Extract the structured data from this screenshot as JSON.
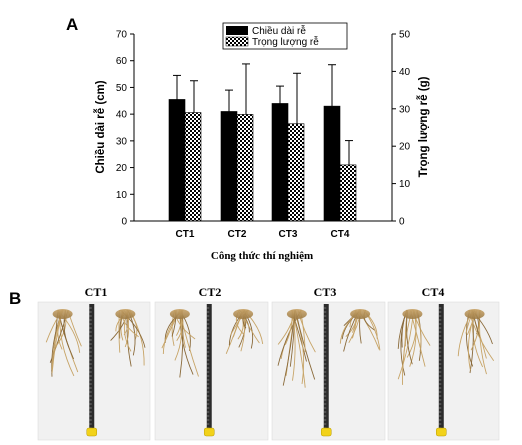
{
  "chart_data": {
    "type": "bar",
    "panel_label": "A",
    "categories": [
      "CT1",
      "CT2",
      "CT3",
      "CT4"
    ],
    "xlabel": "Công thức thí nghiệm",
    "ylabel_left": "Chiều dài rễ (cm)",
    "ylabel_right": "Trọng lượng rễ (g)",
    "ylim_left": [
      0,
      70
    ],
    "yticks_left": [
      0,
      10,
      20,
      30,
      40,
      50,
      60,
      70
    ],
    "ylim_right": [
      0,
      50
    ],
    "yticks_right": [
      0,
      10,
      20,
      30,
      40,
      50
    ],
    "legend_position": "top-center",
    "grid": false,
    "series": [
      {
        "name": "Chiều dài rễ",
        "axis": "left",
        "fill": "solid",
        "color": "#000000",
        "values": [
          45.5,
          41,
          44,
          43
        ],
        "error": [
          9,
          8,
          6.5,
          15.5
        ]
      },
      {
        "name": "Trọng lượng rễ",
        "axis": "right",
        "fill": "checkered",
        "color": "#000000",
        "values": [
          29,
          28.5,
          26,
          15
        ],
        "error": [
          8.5,
          13.5,
          13.5,
          6.5
        ]
      }
    ]
  },
  "photos": {
    "panel_label": "B",
    "items": [
      {
        "label": "CT1"
      },
      {
        "label": "CT2"
      },
      {
        "label": "CT3"
      },
      {
        "label": "CT4"
      }
    ]
  }
}
